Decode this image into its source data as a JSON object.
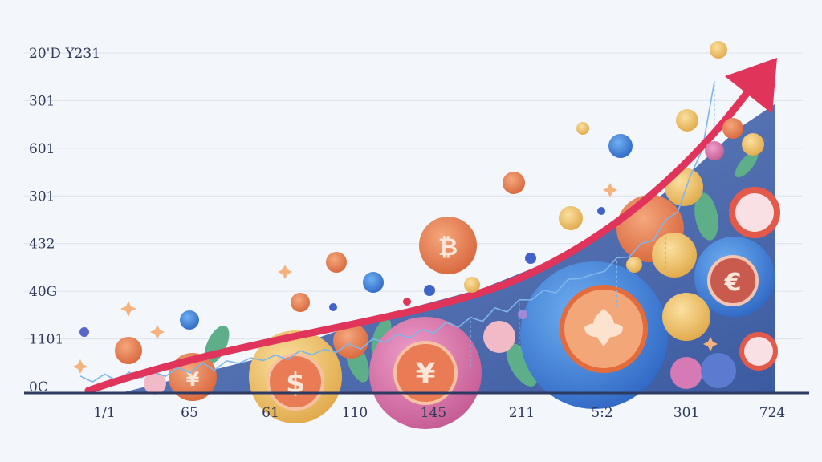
{
  "chart_data": {
    "type": "line",
    "title": "",
    "xlabel": "",
    "ylabel": "",
    "y_tick_labels": [
      "0C",
      "1101",
      "40G",
      "432",
      "301",
      "601",
      "301",
      "20'D Y231"
    ],
    "x_tick_labels": [
      "1/1",
      "65",
      "61",
      "110",
      "145",
      "211",
      "5:2",
      "301",
      "724"
    ],
    "grid": true,
    "series": [
      {
        "values": [
          0.02,
          0.03,
          0.06,
          0.05,
          0.1,
          0.12,
          0.1,
          0.15,
          0.2,
          0.22,
          0.3,
          0.28,
          0.34,
          0.42,
          0.4,
          0.48,
          0.46,
          0.5,
          0.55,
          0.6,
          0.58,
          0.65,
          0.7,
          0.72,
          0.8,
          0.86,
          0.9,
          0.95,
          1.0,
          1.05,
          1.15,
          1.18,
          1.25,
          1.3,
          1.45,
          1.5,
          1.62,
          1.75,
          1.82,
          1.9,
          2.05,
          2.2,
          2.15,
          2.35,
          2.5,
          2.65,
          2.8,
          3.0,
          3.3,
          3.6,
          4.2,
          4.9,
          6.2
        ]
      }
    ],
    "trend_arrow": {
      "direction": "up",
      "color": "#e0345a"
    }
  },
  "colors": {
    "background": "#f3f6fa",
    "grid": "#dde4ee",
    "line": "#7fb6ea",
    "axis": "#2d3b63",
    "arrow": "#e0345a",
    "coin_orange": "#e98757",
    "coin_blue": "#3f7fd6",
    "coin_pink": "#d872a8",
    "coin_gold": "#f0c56a"
  },
  "icons": [
    "bitcoin-coin-icon",
    "dollar-coin-icon",
    "yen-coin-icon",
    "euro-coin-icon",
    "flower-coin-icon"
  ]
}
